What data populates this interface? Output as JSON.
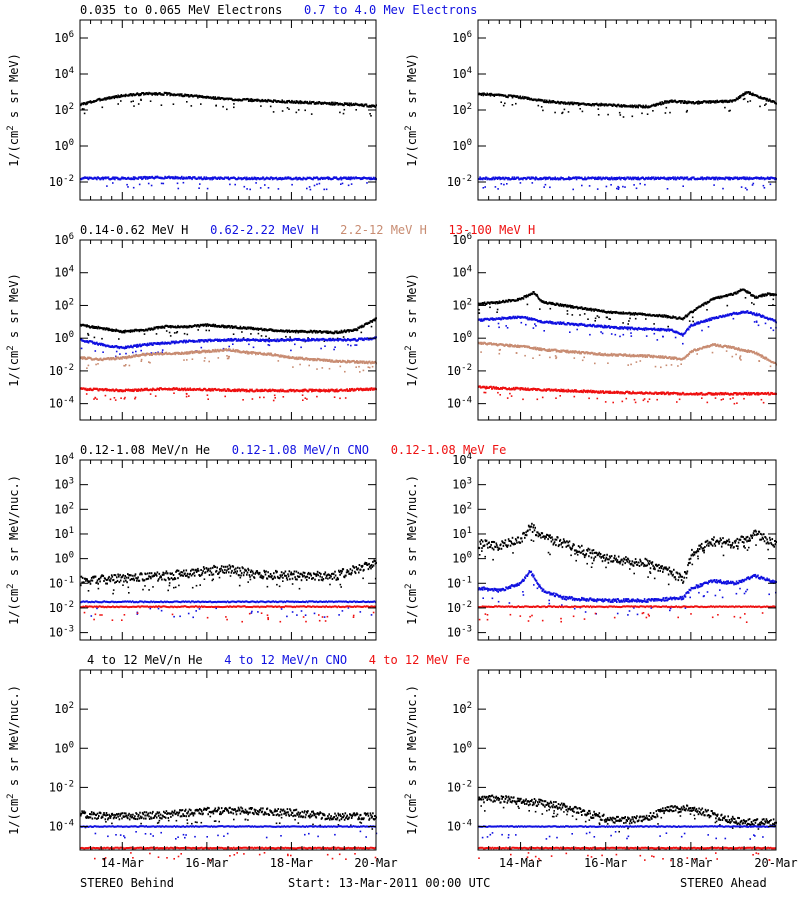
{
  "colors": {
    "black": "#000000",
    "blue": "#1010e0",
    "tan": "#c88c72",
    "red": "#ee1010"
  },
  "footer": {
    "left": "STEREO Behind",
    "center": "Start: 13-Mar-2011 00:00 UTC",
    "right": "STEREO Ahead"
  },
  "x_ticks": [
    "14-Mar",
    "16-Mar",
    "18-Mar",
    "20-Mar"
  ],
  "chart_data": [
    {
      "type": "scatter",
      "row": "electrons",
      "legend": [
        {
          "label": "0.035 to 0.065 MeV Electrons",
          "color": "black"
        },
        {
          "label": "0.7 to 4.0 Mev Electrons",
          "color": "blue"
        }
      ],
      "ylabel": "1/(cm^2 s sr MeV)",
      "y_scale": "log",
      "ylim_log10": [
        -3,
        7
      ],
      "y_ticks_log10": [
        -2,
        0,
        2,
        4,
        6
      ],
      "x_unit": "days since 13-Mar-2011 00:00 UTC",
      "xlim": [
        0,
        7
      ],
      "panels": [
        {
          "spacecraft": "STEREO Behind",
          "series": [
            {
              "color": "black",
              "x": [
                0,
                0.5,
                1,
                1.5,
                2,
                2.5,
                3,
                3.5,
                4,
                4.5,
                5,
                5.5,
                6,
                6.5,
                7
              ],
              "log10": [
                2.3,
                2.6,
                2.8,
                2.9,
                2.9,
                2.8,
                2.7,
                2.6,
                2.55,
                2.5,
                2.45,
                2.4,
                2.35,
                2.3,
                2.2
              ]
            },
            {
              "color": "blue",
              "x": [
                0,
                1,
                2,
                3,
                4,
                5,
                6,
                7
              ],
              "log10": [
                -1.8,
                -1.8,
                -1.75,
                -1.8,
                -1.8,
                -1.8,
                -1.8,
                -1.8
              ]
            }
          ]
        },
        {
          "spacecraft": "STEREO Ahead",
          "series": [
            {
              "color": "black",
              "x": [
                0,
                0.5,
                1,
                1.5,
                2,
                2.5,
                3,
                3.5,
                4,
                4.5,
                5,
                5.5,
                6,
                6.3,
                6.6,
                7
              ],
              "log10": [
                2.9,
                2.8,
                2.7,
                2.5,
                2.4,
                2.3,
                2.3,
                2.2,
                2.2,
                2.5,
                2.4,
                2.45,
                2.5,
                3.0,
                2.7,
                2.4
              ]
            },
            {
              "color": "blue",
              "x": [
                0,
                1,
                2,
                3,
                4,
                5,
                6,
                7
              ],
              "log10": [
                -1.8,
                -1.8,
                -1.8,
                -1.8,
                -1.8,
                -1.8,
                -1.8,
                -1.8
              ]
            }
          ]
        }
      ]
    },
    {
      "type": "scatter",
      "row": "protons",
      "legend": [
        {
          "label": "0.14-0.62 MeV H",
          "color": "black"
        },
        {
          "label": "0.62-2.22 MeV H",
          "color": "blue"
        },
        {
          "label": "2.2-12 MeV H",
          "color": "tan"
        },
        {
          "label": "13-100 MeV H",
          "color": "red"
        }
      ],
      "ylabel": "1/(cm^2 s sr MeV)",
      "y_scale": "log",
      "ylim_log10": [
        -5,
        6
      ],
      "y_ticks_log10": [
        -4,
        -2,
        0,
        2,
        4,
        6
      ],
      "x_unit": "days since 13-Mar-2011 00:00 UTC",
      "xlim": [
        0,
        7
      ],
      "panels": [
        {
          "spacecraft": "STEREO Behind",
          "series": [
            {
              "color": "black",
              "x": [
                0,
                0.5,
                1,
                1.5,
                2,
                2.5,
                3,
                3.5,
                4,
                4.5,
                5,
                5.5,
                6,
                6.5,
                7
              ],
              "log10": [
                0.8,
                0.6,
                0.4,
                0.5,
                0.7,
                0.7,
                0.8,
                0.7,
                0.6,
                0.5,
                0.4,
                0.4,
                0.35,
                0.5,
                1.2
              ]
            },
            {
              "color": "blue",
              "x": [
                0,
                0.5,
                1,
                1.5,
                2,
                2.5,
                3,
                3.5,
                4,
                4.5,
                5,
                5.5,
                6,
                6.5,
                7
              ],
              "log10": [
                -0.1,
                -0.4,
                -0.6,
                -0.4,
                -0.3,
                -0.2,
                -0.15,
                -0.1,
                -0.1,
                -0.15,
                -0.1,
                -0.1,
                -0.1,
                -0.1,
                0
              ]
            },
            {
              "color": "tan",
              "x": [
                0,
                0.5,
                1,
                1.5,
                2,
                2.5,
                3,
                3.5,
                4,
                4.5,
                5,
                5.5,
                6,
                6.5,
                7
              ],
              "log10": [
                -1.2,
                -1.3,
                -1.2,
                -1.0,
                -0.95,
                -0.9,
                -0.8,
                -0.7,
                -0.9,
                -1.0,
                -1.2,
                -1.3,
                -1.4,
                -1.45,
                -1.5
              ]
            },
            {
              "color": "red",
              "x": [
                0,
                1,
                2,
                3,
                4,
                5,
                6,
                7
              ],
              "log10": [
                -3.1,
                -3.2,
                -3.1,
                -3.15,
                -3.2,
                -3.2,
                -3.2,
                -3.1
              ]
            }
          ]
        },
        {
          "spacecraft": "STEREO Ahead",
          "series": [
            {
              "color": "black",
              "x": [
                0,
                0.5,
                1.0,
                1.3,
                1.5,
                2,
                2.5,
                3,
                3.5,
                4,
                4.5,
                4.8,
                5,
                5.5,
                6,
                6.2,
                6.5,
                6.8,
                7
              ],
              "log10": [
                2.1,
                2.2,
                2.4,
                2.8,
                2.2,
                2.0,
                1.8,
                1.6,
                1.5,
                1.45,
                1.3,
                1.2,
                1.6,
                2.4,
                2.7,
                3.0,
                2.5,
                2.7,
                2.6
              ]
            },
            {
              "color": "blue",
              "x": [
                0,
                0.5,
                1.0,
                1.5,
                2,
                2.5,
                3,
                3.5,
                4,
                4.5,
                4.8,
                5,
                5.5,
                6,
                6.3,
                6.6,
                7
              ],
              "log10": [
                1.1,
                1.2,
                1.3,
                1.0,
                0.9,
                0.8,
                0.7,
                0.6,
                0.55,
                0.5,
                0.2,
                0.8,
                1.2,
                1.5,
                1.6,
                1.4,
                1.0
              ]
            },
            {
              "color": "tan",
              "x": [
                0,
                0.5,
                1.0,
                1.5,
                2,
                2.5,
                3,
                3.5,
                4,
                4.5,
                4.8,
                5,
                5.5,
                6,
                6.5,
                7
              ],
              "log10": [
                -0.3,
                -0.4,
                -0.5,
                -0.7,
                -0.8,
                -0.9,
                -1.0,
                -1.05,
                -1.1,
                -1.2,
                -1.3,
                -0.8,
                -0.4,
                -0.6,
                -0.9,
                -1.6
              ]
            },
            {
              "color": "red",
              "x": [
                0,
                1,
                2,
                3,
                4,
                5,
                6,
                7
              ],
              "log10": [
                -3.0,
                -3.1,
                -3.2,
                -3.3,
                -3.35,
                -3.4,
                -3.4,
                -3.4
              ]
            }
          ]
        }
      ]
    },
    {
      "type": "scatter",
      "row": "heavy-ions-low",
      "legend": [
        {
          "label": "0.12-1.08 MeV/n He",
          "color": "black"
        },
        {
          "label": "0.12-1.08 MeV/n CNO",
          "color": "blue"
        },
        {
          "label": "0.12-1.08 MeV Fe",
          "color": "red"
        }
      ],
      "ylabel": "1/(cm^2 s sr MeV/nuc.)",
      "y_scale": "log",
      "ylim_log10": [
        -3.3,
        4
      ],
      "y_ticks_log10": [
        -3,
        -2,
        -1,
        0,
        1,
        2,
        3,
        4
      ],
      "x_unit": "days since 13-Mar-2011 00:00 UTC",
      "xlim": [
        0,
        7
      ],
      "panels": [
        {
          "spacecraft": "STEREO Behind",
          "series": [
            {
              "color": "black",
              "x": [
                0,
                1,
                2,
                3,
                3.5,
                4,
                5,
                6,
                7
              ],
              "log10": [
                -0.9,
                -0.8,
                -0.7,
                -0.5,
                -0.4,
                -0.6,
                -0.7,
                -0.7,
                -0.2
              ]
            },
            {
              "color": "blue",
              "x": [
                0,
                7
              ],
              "log10": [
                -1.75,
                -1.75
              ]
            },
            {
              "color": "red",
              "x": [
                0,
                7
              ],
              "log10": [
                -1.95,
                -1.95
              ]
            }
          ]
        },
        {
          "spacecraft": "STEREO Ahead",
          "series": [
            {
              "color": "black",
              "x": [
                0,
                0.5,
                1.0,
                1.2,
                1.5,
                2,
                2.5,
                3,
                3.5,
                4,
                4.5,
                4.8,
                5,
                5.5,
                6,
                6.5,
                7
              ],
              "log10": [
                0.6,
                0.5,
                0.8,
                1.3,
                0.9,
                0.6,
                0.3,
                0,
                -0.1,
                -0.2,
                -0.5,
                -0.9,
                0.2,
                0.7,
                0.6,
                1.0,
                0.6
              ]
            },
            {
              "color": "blue",
              "x": [
                0,
                0.5,
                1.0,
                1.2,
                1.5,
                2,
                3,
                4,
                4.8,
                5,
                5.5,
                6,
                6.5,
                7
              ],
              "log10": [
                -1.2,
                -1.3,
                -1.0,
                -0.5,
                -1.3,
                -1.6,
                -1.7,
                -1.7,
                -1.6,
                -1.2,
                -0.9,
                -1.0,
                -0.7,
                -1.0
              ]
            },
            {
              "color": "red",
              "x": [
                0,
                7
              ],
              "log10": [
                -1.95,
                -1.95
              ]
            }
          ]
        }
      ]
    },
    {
      "type": "scatter",
      "row": "heavy-ions-high",
      "legend": [
        {
          "label": "4 to 12 MeV/n He",
          "color": "black"
        },
        {
          "label": "4 to 12 MeV/n CNO",
          "color": "blue"
        },
        {
          "label": "4 to 12 MeV Fe",
          "color": "red"
        }
      ],
      "ylabel": "1/(cm^2 s sr MeV/nuc.)",
      "y_scale": "log",
      "ylim_log10": [
        -5.2,
        4
      ],
      "y_ticks_log10": [
        -4,
        -2,
        0,
        2
      ],
      "x_unit": "days since 13-Mar-2011 00:00 UTC",
      "xlim": [
        0,
        7
      ],
      "panels": [
        {
          "spacecraft": "STEREO Behind",
          "series": [
            {
              "color": "black",
              "x": [
                0,
                1,
                2,
                3,
                4,
                5,
                6,
                7
              ],
              "log10": [
                -3.4,
                -3.5,
                -3.4,
                -3.2,
                -3.2,
                -3.3,
                -3.5,
                -3.5
              ]
            },
            {
              "color": "blue",
              "x": [
                0,
                7
              ],
              "log10": [
                -4.0,
                -4.0
              ]
            },
            {
              "color": "red",
              "x": [
                0,
                7
              ],
              "log10": [
                -5.1,
                -5.1
              ]
            }
          ]
        },
        {
          "spacecraft": "STEREO Ahead",
          "series": [
            {
              "color": "black",
              "x": [
                0,
                0.5,
                1.0,
                1.5,
                2,
                2.5,
                3,
                3.5,
                4,
                4.5,
                5,
                5.5,
                6,
                6.5,
                7
              ],
              "log10": [
                -2.6,
                -2.6,
                -2.7,
                -2.8,
                -3.0,
                -3.3,
                -3.6,
                -3.7,
                -3.5,
                -3.1,
                -3.1,
                -3.4,
                -3.7,
                -3.8,
                -3.8
              ]
            },
            {
              "color": "blue",
              "x": [
                0,
                7
              ],
              "log10": [
                -4.0,
                -4.0
              ]
            },
            {
              "color": "red",
              "x": [
                0,
                7
              ],
              "log10": [
                -5.1,
                -5.1
              ]
            }
          ]
        }
      ]
    }
  ]
}
